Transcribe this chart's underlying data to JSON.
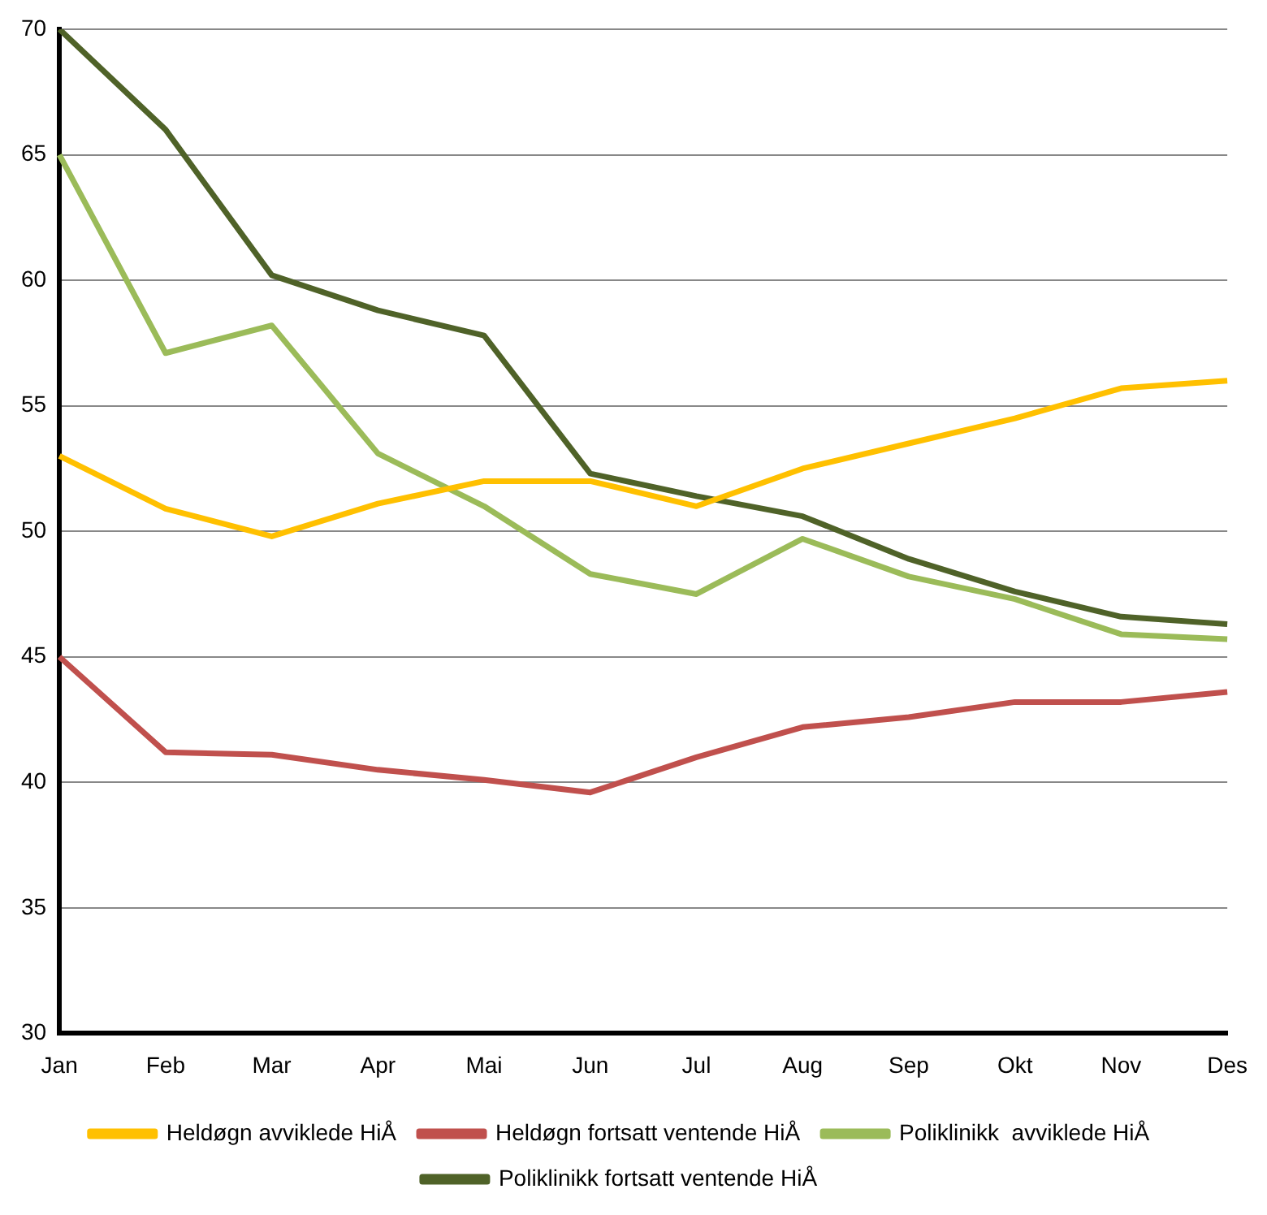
{
  "chart_data": {
    "type": "line",
    "categories": [
      "Jan",
      "Feb",
      "Mar",
      "Apr",
      "Mai",
      "Jun",
      "Jul",
      "Aug",
      "Sep",
      "Okt",
      "Nov",
      "Des"
    ],
    "series": [
      {
        "name": "Heldøgn avviklede HiÅ",
        "color": "#ffc000",
        "values": [
          53.0,
          50.9,
          49.8,
          51.1,
          52.0,
          52.0,
          51.0,
          52.5,
          53.5,
          54.5,
          55.7,
          56.0
        ]
      },
      {
        "name": "Heldøgn fortsatt ventende HiÅ",
        "color": "#c0504d",
        "values": [
          45.0,
          41.2,
          41.1,
          40.5,
          40.1,
          39.6,
          41.0,
          42.2,
          42.6,
          43.2,
          43.2,
          43.6
        ]
      },
      {
        "name": "Poliklinikk  avviklede HiÅ",
        "color": "#9bbb59",
        "values": [
          65.0,
          57.1,
          58.2,
          53.1,
          51.0,
          48.3,
          47.5,
          49.7,
          48.2,
          47.3,
          45.9,
          45.7
        ]
      },
      {
        "name": "Poliklinikk fortsatt ventende HiÅ",
        "color": "#4f6228",
        "values": [
          70.0,
          66.0,
          60.2,
          58.8,
          57.8,
          52.3,
          51.4,
          50.6,
          48.9,
          47.6,
          46.6,
          46.3
        ]
      }
    ],
    "ylim": [
      30,
      70
    ],
    "yticks": [
      30,
      35,
      40,
      45,
      50,
      55,
      60,
      65,
      70
    ],
    "grid": "y",
    "legend": "bottom",
    "marker": "none",
    "line_style": "solid"
  }
}
